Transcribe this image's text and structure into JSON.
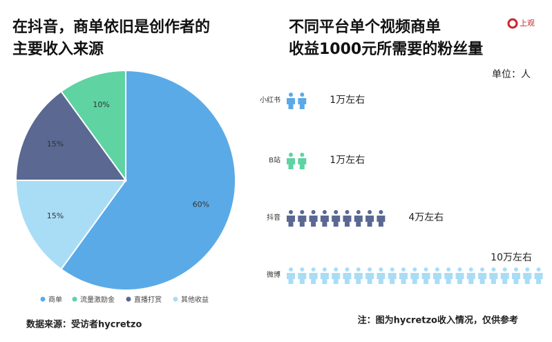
{
  "logo": "上观",
  "chart_data": [
    {
      "type": "pie",
      "title": [
        "在抖音，商单依旧是创作者的",
        "主要收入来源"
      ],
      "categories": [
        "商单",
        "流量激励金",
        "直播打赏",
        "其他收益"
      ],
      "values": [
        60,
        10,
        15,
        15
      ],
      "value_labels": [
        "60%",
        "10%",
        "15%",
        "15%"
      ],
      "colors": [
        "#5aaae8",
        "#5fd3a2",
        "#5a6892",
        "#a9ddf6"
      ]
    },
    {
      "type": "pictogram",
      "title": [
        "不同平台单个视频商单",
        "收益1000元所需要的粉丝量"
      ],
      "unit_label": "单位：人",
      "categories": [
        "小红书",
        "B站",
        "抖音",
        "微博"
      ],
      "values": [
        10000,
        10000,
        40000,
        100000
      ],
      "value_labels": [
        "1万左右",
        "1万左右",
        "4万左右",
        "10万左右"
      ],
      "colors": [
        "#5aaae8",
        "#5fd3a2",
        "#5a6892",
        "#a9ddf6"
      ]
    }
  ],
  "footer": {
    "source": "数据来源：受访者hycretzo",
    "note": "注：图为hycretzo收入情况，仅供参考"
  }
}
